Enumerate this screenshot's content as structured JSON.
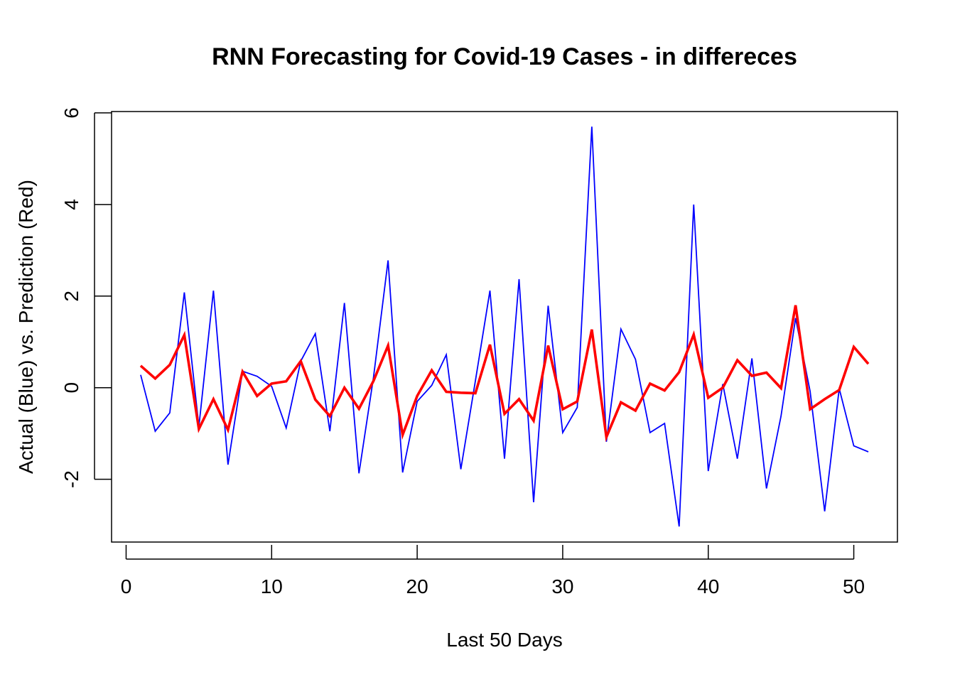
{
  "chart_data": {
    "type": "line",
    "title": "RNN Forecasting for Covid-19 Cases - in differeces",
    "xlabel": "Last 50 Days",
    "ylabel": "Actual (Blue) vs. Prediction (Red)",
    "xlim": [
      -1,
      53
    ],
    "ylim": [
      -3.37,
      6.03
    ],
    "xticks": [
      0,
      10,
      20,
      30,
      40,
      50
    ],
    "yticks": [
      -2,
      0,
      2,
      4,
      6
    ],
    "x": [
      1,
      2,
      3,
      4,
      5,
      6,
      7,
      8,
      9,
      10,
      11,
      12,
      13,
      14,
      15,
      16,
      17,
      18,
      19,
      20,
      21,
      22,
      23,
      24,
      25,
      26,
      27,
      28,
      29,
      30,
      31,
      32,
      33,
      34,
      35,
      36,
      37,
      38,
      39,
      40,
      41,
      42,
      43,
      44,
      45,
      46,
      47,
      48,
      49,
      50,
      51
    ],
    "series": [
      {
        "name": "Actual (Blue)",
        "color": "#0000ff",
        "width": "thin",
        "values": [
          0.28,
          -0.95,
          -0.55,
          2.08,
          -0.85,
          2.12,
          -1.68,
          0.36,
          0.25,
          0.03,
          -0.88,
          0.58,
          1.18,
          -0.95,
          1.85,
          -1.87,
          0.23,
          2.78,
          -1.85,
          -0.3,
          0.05,
          0.72,
          -1.78,
          0.15,
          2.12,
          -1.55,
          2.37,
          -2.5,
          1.79,
          -0.98,
          -0.43,
          5.7,
          -1.18,
          1.28,
          0.62,
          -0.98,
          -0.78,
          -3.03,
          4.0,
          -1.82,
          0.08,
          -1.55,
          0.64,
          -2.2,
          -0.62,
          1.52,
          -0.08,
          -2.7,
          -0.02,
          -1.27,
          -1.4
        ]
      },
      {
        "name": "Prediction (Red)",
        "color": "#ff0000",
        "width": "thick",
        "values": [
          0.48,
          0.2,
          0.5,
          1.15,
          -0.9,
          -0.25,
          -0.92,
          0.35,
          -0.18,
          0.09,
          0.14,
          0.58,
          -0.26,
          -0.62,
          0.0,
          -0.46,
          0.15,
          0.92,
          -1.03,
          -0.18,
          0.38,
          -0.09,
          -0.11,
          -0.12,
          0.94,
          -0.57,
          -0.25,
          -0.72,
          0.92,
          -0.47,
          -0.3,
          1.27,
          -1.08,
          -0.32,
          -0.5,
          0.09,
          -0.06,
          0.34,
          1.16,
          -0.22,
          0.0,
          0.6,
          0.26,
          0.33,
          -0.01,
          1.8,
          -0.47,
          -0.25,
          -0.05,
          0.89,
          0.52
        ]
      }
    ],
    "grid": false,
    "legend": "none"
  }
}
